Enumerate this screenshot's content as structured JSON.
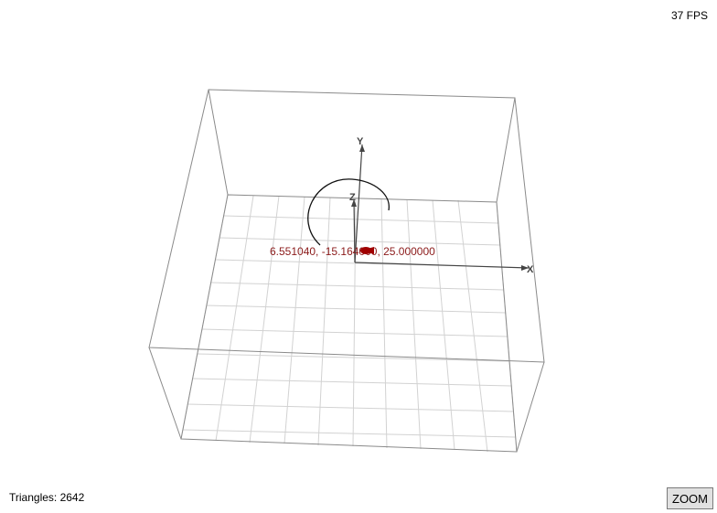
{
  "hud": {
    "fps": "37 FPS",
    "triangles": "Triangles: 2642",
    "zoom_label": "ZOOM"
  },
  "scene": {
    "axes": {
      "x_label": "X",
      "y_label": "Y",
      "z_label": "Z"
    },
    "cursor_readout": "6.551040, -15.164000, 25.000000",
    "colors": {
      "readout": "#8b1a1a",
      "marker": "#a00000",
      "box_edge": "#888888",
      "grid": "#cfcfcf",
      "axis": "#555555"
    }
  }
}
